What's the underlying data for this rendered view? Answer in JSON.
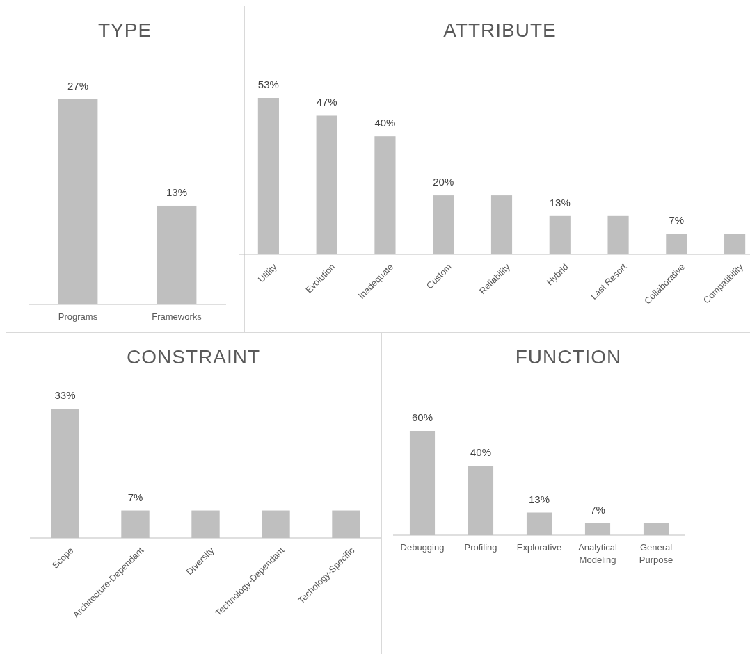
{
  "chart_data": [
    {
      "type": "bar",
      "title": "TYPE",
      "categories": [
        "Programs",
        "Frameworks"
      ],
      "values": [
        27,
        13
      ],
      "color": "#bfbfbf",
      "value_labels": [
        "27%",
        "13%"
      ]
    },
    {
      "type": "bar",
      "title": "ATTRIBUTE",
      "categories": [
        "Utility",
        "Evolution",
        "Inadequate",
        "Custom",
        "Reliability",
        "Hybrid",
        "Last Resort",
        "Collaborative",
        "Compatibility"
      ],
      "values": [
        53,
        47,
        40,
        20,
        20,
        13,
        13,
        7,
        7
      ],
      "color": "#bfbfbf",
      "value_labels": [
        "53%",
        "47%",
        "40%",
        "20%",
        null,
        "13%",
        null,
        "7%",
        null
      ]
    },
    {
      "type": "bar",
      "title": "CONSTRAINT",
      "categories": [
        "Scope",
        "Architecture-Dependant",
        "Diversity",
        "Technology-Dependant",
        "Techology-Specific"
      ],
      "values": [
        33,
        7,
        7,
        7,
        7
      ],
      "color": "#bfbfbf",
      "value_labels": [
        "33%",
        "7%",
        null,
        null,
        null
      ]
    },
    {
      "type": "bar",
      "title": "FUNCTION",
      "categories": [
        "Debugging",
        "Profiling",
        "Explorative",
        "Analytical Modeling",
        "General Purpose"
      ],
      "values": [
        60,
        40,
        13,
        7,
        7
      ],
      "color": "#bfbfbf",
      "value_labels": [
        "60%",
        "40%",
        "13%",
        "7%",
        null
      ]
    }
  ]
}
